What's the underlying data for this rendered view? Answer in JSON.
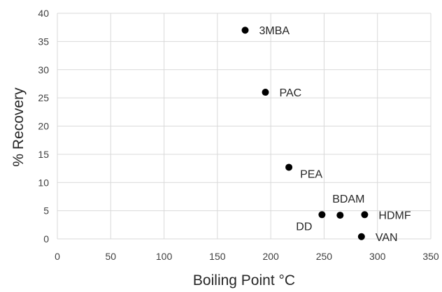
{
  "chart_data": {
    "type": "scatter",
    "title": "",
    "xlabel": "Boiling Point °C",
    "ylabel": "% Recovery",
    "xlim": [
      0,
      350
    ],
    "ylim": [
      0,
      40
    ],
    "xticks": [
      0,
      50,
      100,
      150,
      200,
      250,
      300,
      350
    ],
    "yticks": [
      0,
      5,
      10,
      15,
      20,
      25,
      30,
      35,
      40
    ],
    "grid": true,
    "legend": "none",
    "marker_color": "#000000",
    "grid_color": "#d9d9d9",
    "points": [
      {
        "label": "3MBA",
        "x": 176,
        "y": 37,
        "label_pos": "right"
      },
      {
        "label": "PAC",
        "x": 195,
        "y": 26,
        "label_pos": "right"
      },
      {
        "label": "PEA",
        "x": 217,
        "y": 12.7,
        "label_pos": "below-right"
      },
      {
        "label": "DD",
        "x": 248,
        "y": 4.3,
        "label_pos": "below-left"
      },
      {
        "label": "BDAM",
        "x": 265,
        "y": 4.2,
        "label_pos": "above"
      },
      {
        "label": "HDMF",
        "x": 288,
        "y": 4.3,
        "label_pos": "right"
      },
      {
        "label": "VAN",
        "x": 285,
        "y": 0.4,
        "label_pos": "right"
      }
    ]
  }
}
